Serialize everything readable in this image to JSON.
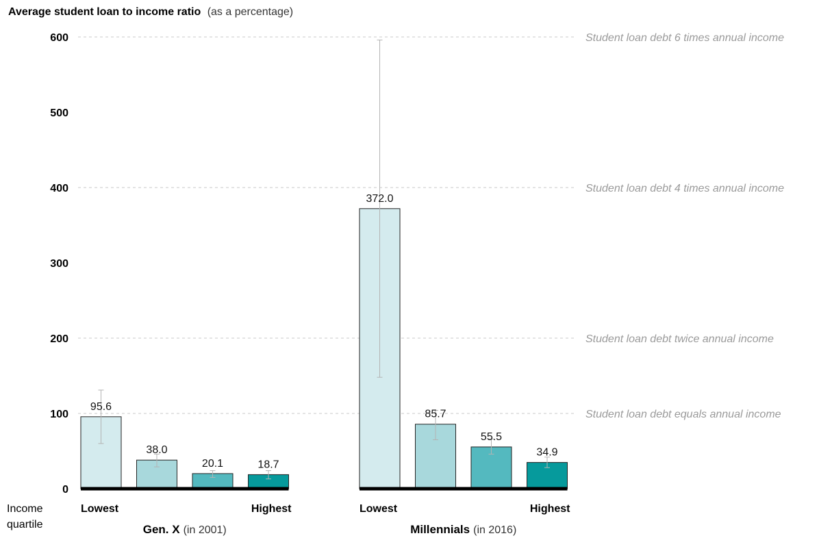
{
  "chart_data": {
    "type": "bar",
    "title": "Average student loan to income ratio",
    "title_note": "(as a percentage)",
    "ylim": [
      0,
      600
    ],
    "yticks": [
      0,
      100,
      200,
      300,
      400,
      500,
      600
    ],
    "grid": "dashed reference lines at 100, 200, 400, 600",
    "reference_lines": [
      {
        "value": 600,
        "label": "Student loan debt 6 times annual income"
      },
      {
        "value": 400,
        "label": "Student loan debt 4 times annual income"
      },
      {
        "value": 200,
        "label": "Student loan debt twice annual income"
      },
      {
        "value": 100,
        "label": "Student loan debt equals annual income"
      }
    ],
    "x_axis_title": [
      "Income",
      "quartile"
    ],
    "groups": [
      {
        "name": "Gen. X",
        "note": "(in 2001)",
        "low_label": "Lowest",
        "high_label": "Highest",
        "bars": [
          {
            "value": 95.6,
            "label": "95.6",
            "err": [
              60,
              131
            ]
          },
          {
            "value": 38.0,
            "label": "38.0",
            "err": [
              29,
              46
            ]
          },
          {
            "value": 20.1,
            "label": "20.1",
            "err": [
              15,
              24
            ]
          },
          {
            "value": 18.7,
            "label": "18.7",
            "err": [
              13,
              24
            ]
          }
        ]
      },
      {
        "name": "Millennials",
        "note": "(in 2016)",
        "low_label": "Lowest",
        "high_label": "Highest",
        "bars": [
          {
            "value": 372.0,
            "label": "372.0",
            "err": [
              148,
              596
            ]
          },
          {
            "value": 85.7,
            "label": "85.7",
            "err": [
              65,
              104
            ]
          },
          {
            "value": 55.5,
            "label": "55.5",
            "err": [
              46,
              66
            ]
          },
          {
            "value": 34.9,
            "label": "34.9",
            "err": [
              28,
              42
            ]
          }
        ]
      }
    ],
    "colors": {
      "quartiles": [
        "#d4ebee",
        "#a8d8dc",
        "#54b9bf",
        "#069a9c"
      ],
      "bar_stroke": "#222222",
      "baseline": "#000000",
      "error_bar": "#b3b3b3",
      "grid": "#c8c8c8",
      "ref_text": "#9a9a9a"
    }
  }
}
